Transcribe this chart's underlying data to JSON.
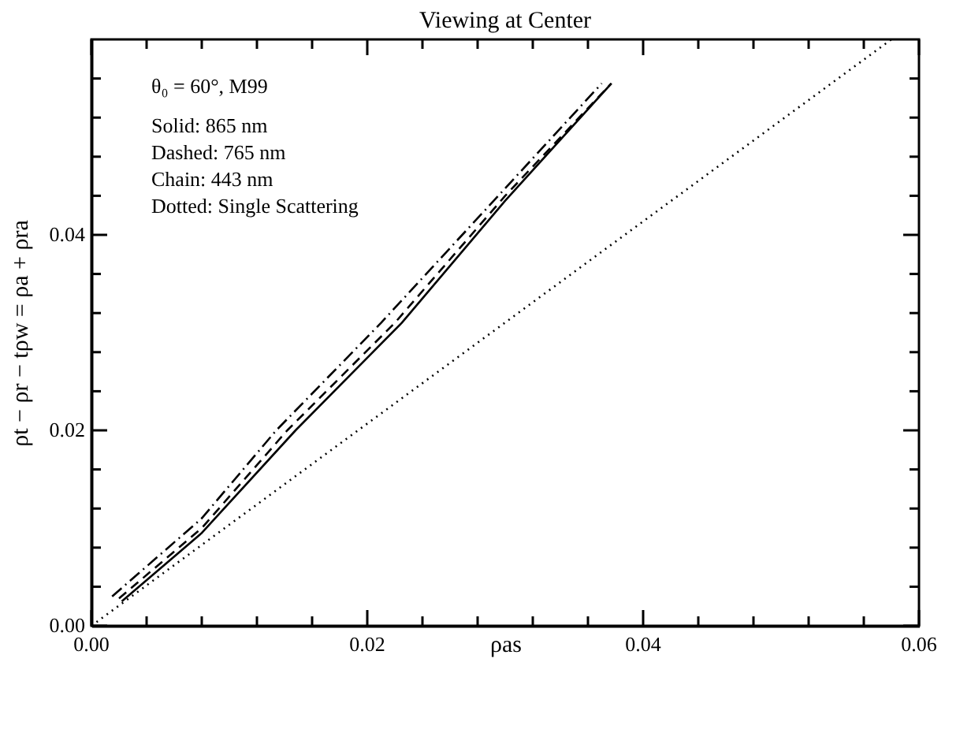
{
  "chart_data": {
    "type": "line",
    "title": "Viewing at Center",
    "xlabel": "ρas",
    "ylabel": "ρt − ρr − tρw = ρa + ρra",
    "xlim": [
      0,
      0.06
    ],
    "ylim": [
      0,
      0.06
    ],
    "xticks": [
      {
        "value": 0,
        "label": "0.00"
      },
      {
        "value": 0.004,
        "label": null
      },
      {
        "value": 0.008,
        "label": null
      },
      {
        "value": 0.012,
        "label": null
      },
      {
        "value": 0.016,
        "label": null
      },
      0.02,
      {
        "value": 0.024,
        "label": null
      },
      {
        "value": 0.028,
        "label": null
      },
      {
        "value": 0.032,
        "label": null
      },
      {
        "value": 0.036,
        "label": null
      },
      0.04,
      {
        "value": 0.044,
        "label": null
      },
      {
        "value": 0.048,
        "label": null
      },
      {
        "value": 0.052,
        "label": null
      },
      {
        "value": 0.056,
        "label": null
      },
      0.06
    ],
    "yticks": [
      {
        "value": 0,
        "label": "0.00"
      },
      {
        "value": 0.004,
        "label": null
      },
      {
        "value": 0.008,
        "label": null
      },
      {
        "value": 0.012,
        "label": null
      },
      {
        "value": 0.016,
        "label": null
      },
      0.02,
      {
        "value": 0.024,
        "label": null
      },
      {
        "value": 0.028,
        "label": null
      },
      {
        "value": 0.032,
        "label": null
      },
      {
        "value": 0.036,
        "label": null
      },
      0.04,
      {
        "value": 0.044,
        "label": null
      },
      {
        "value": 0.048,
        "label": null
      },
      {
        "value": 0.052,
        "label": null
      },
      {
        "value": 0.056,
        "label": null
      }
    ],
    "grid": false,
    "marker": "none",
    "series": [
      {
        "color": "#000000",
        "line_style": "solid",
        "x": [
          0.0022,
          0.008,
          0.0148,
          0.0225,
          0.03,
          0.0377
        ],
        "values": [
          0.0025,
          0.0095,
          0.02,
          0.031,
          0.0435,
          0.0555
        ]
      },
      {
        "color": "#000000",
        "line_style": "dashed",
        "x": [
          0.002,
          0.008,
          0.0142,
          0.022,
          0.03,
          0.0377
        ],
        "values": [
          0.0028,
          0.01,
          0.02,
          0.031,
          0.044,
          0.0555
        ]
      },
      {
        "color": "#000000",
        "line_style": "dashdot",
        "x": [
          0.0015,
          0.008,
          0.0134,
          0.021,
          0.0295,
          0.037
        ],
        "values": [
          0.003,
          0.011,
          0.02,
          0.031,
          0.044,
          0.0555
        ]
      },
      {
        "color": "#000000",
        "line_style": "dotted",
        "x": [
          0,
          0.058
        ],
        "values": [
          0,
          0.06
        ]
      }
    ],
    "annotations": [
      "θ₀ = 60°,  M99",
      "Solid:    865 nm",
      "Dashed: 765 nm",
      "Chain:   443 nm",
      "Dotted:  Single Scattering"
    ]
  }
}
